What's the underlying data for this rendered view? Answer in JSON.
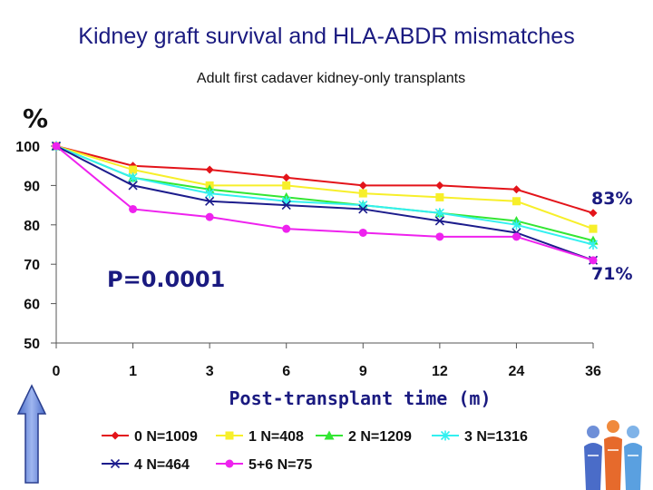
{
  "chart_data": {
    "type": "line",
    "title": "Kidney graft survival and HLA-ABDR mismatches",
    "subtitle": "Adult first cadaver kidney-only transplants",
    "ylabel": "%",
    "xlabel": "Post-transplant time (m)",
    "categories": [
      "0",
      "1",
      "3",
      "6",
      "9",
      "12",
      "24",
      "36"
    ],
    "yticks": [
      100,
      90,
      80,
      70,
      60,
      50
    ],
    "ylim": [
      50,
      100
    ],
    "series": [
      {
        "name": "0 N=1009",
        "color": "#e3141a",
        "marker": "diamond",
        "values": [
          100,
          95,
          94,
          92,
          90,
          90,
          89,
          83
        ]
      },
      {
        "name": "1 N=408",
        "color": "#f7ef2a",
        "marker": "square",
        "values": [
          100,
          94,
          90,
          90,
          88,
          87,
          86,
          79
        ]
      },
      {
        "name": "2 N=1209",
        "color": "#33e633",
        "marker": "triangle",
        "values": [
          100,
          92,
          89,
          87,
          85,
          83,
          81,
          76
        ]
      },
      {
        "name": "3 N=1316",
        "color": "#33f0f0",
        "marker": "star",
        "values": [
          100,
          92,
          88,
          86,
          85,
          83,
          80,
          75
        ]
      },
      {
        "name": "4 N=464",
        "color": "#1c1c8c",
        "marker": "x",
        "values": [
          100,
          90,
          86,
          85,
          84,
          81,
          78,
          71
        ]
      },
      {
        "name": "5+6 N=75",
        "color": "#ee22ee",
        "marker": "circle",
        "values": [
          100,
          84,
          82,
          79,
          78,
          77,
          77,
          71
        ]
      }
    ],
    "annotations": {
      "pvalue": "P=0.0001",
      "top_label": "83%",
      "bottom_label": "71%"
    },
    "legend_position": "bottom"
  },
  "colors": {
    "title": "#1a1a80",
    "annotation": "#1a1a80",
    "axis": "#555555",
    "arrow": "#5b7fd6"
  }
}
